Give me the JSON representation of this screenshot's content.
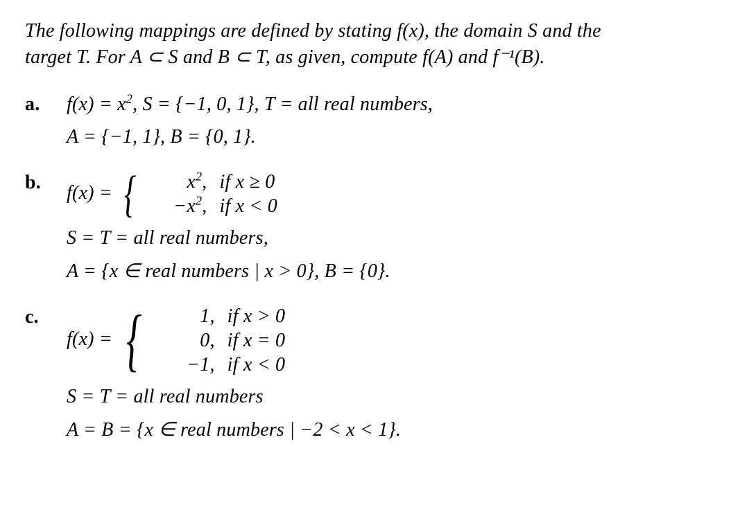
{
  "intro_line1": "The following mappings are defined by stating f(x), the domain S and the",
  "intro_line2": "target T. For A ⊂ S and B ⊂ T, as given, compute f(A) and f⁻¹(B).",
  "items": {
    "a": {
      "label": "a.",
      "line1_prefix": "f(x) = x",
      "line1_exp": "2",
      "line1_rest": ", S = {−1, 0, 1}, T = all real numbers,",
      "line2": "A = {−1, 1}, B = {0, 1}."
    },
    "b": {
      "label": "b.",
      "fx_eq": "f(x) = ",
      "case1_val_pre": "x",
      "case1_exp": "2",
      "case1_val_post": ",",
      "case1_cond": "if x ≥ 0",
      "case2_val_pre": "−x",
      "case2_exp": "2",
      "case2_val_post": ",",
      "case2_cond": "if x < 0",
      "line2": "S = T = all real numbers,",
      "line3": "A = {x ∈  real numbers  | x > 0}, B = {0}."
    },
    "c": {
      "label": "c.",
      "fx_eq": "f(x) = ",
      "case1_val": "1,",
      "case1_cond": "if x > 0",
      "case2_val": "0,",
      "case2_cond": "if x = 0",
      "case3_val": "−1,",
      "case3_cond": "if x < 0",
      "line2": "S = T = all real numbers",
      "line3": "A = B = {x ∈  real numbers  | −2 < x < 1}."
    }
  }
}
